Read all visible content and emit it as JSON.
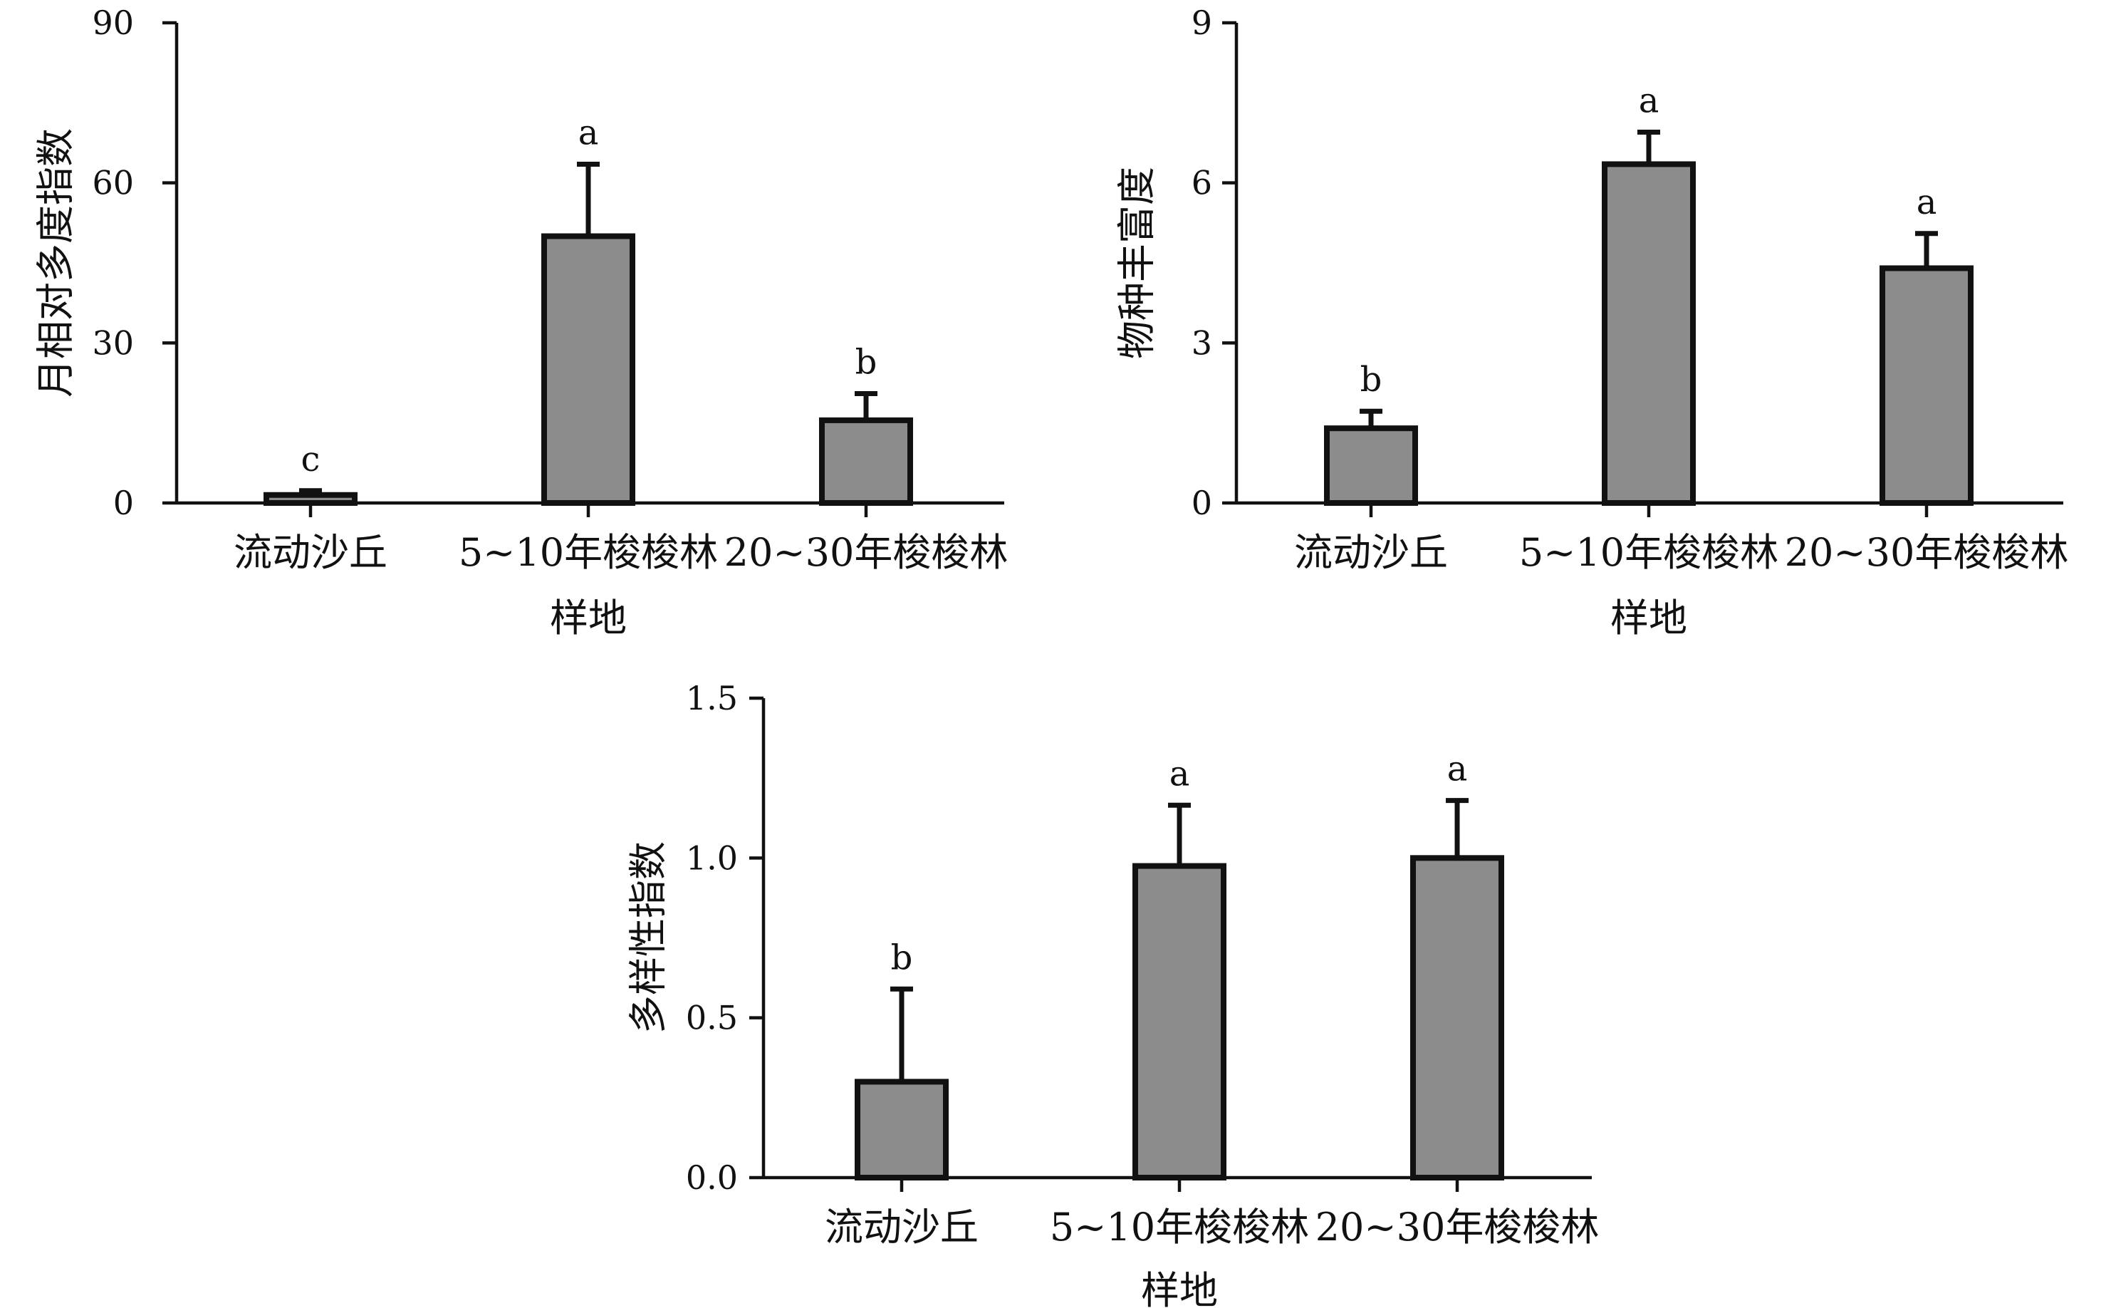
{
  "chart_data": [
    {
      "type": "bar",
      "categories": [
        "流动沙丘",
        "5~10年梭梭林",
        "20~30年梭梭林"
      ],
      "values": [
        1.5,
        50,
        15.5
      ],
      "error": [
        0.8,
        13.5,
        5
      ],
      "significance": [
        "c",
        "a",
        "b"
      ],
      "xlabel": "样地",
      "ylabel": "月相对多度指数",
      "ylim": [
        0,
        90
      ],
      "yticks": [
        0,
        30,
        60,
        90
      ],
      "ytick_labels": [
        "0",
        "30",
        "60",
        "90"
      ],
      "bar_color": "#8c8c8c",
      "grid": false
    },
    {
      "type": "bar",
      "categories": [
        "流动沙丘",
        "5~10年梭梭林",
        "20~30年梭梭林"
      ],
      "values": [
        1.4,
        6.35,
        4.4
      ],
      "error": [
        0.32,
        0.6,
        0.65
      ],
      "significance": [
        "b",
        "a",
        "a"
      ],
      "xlabel": "样地",
      "ylabel": "物种丰富度",
      "ylim": [
        0,
        9
      ],
      "yticks": [
        0,
        3,
        6,
        9
      ],
      "ytick_labels": [
        "0",
        "3",
        "6",
        "9"
      ],
      "bar_color": "#8c8c8c",
      "grid": false
    },
    {
      "type": "bar",
      "categories": [
        "流动沙丘",
        "5~10年梭梭林",
        "20~30年梭梭林"
      ],
      "values": [
        0.3,
        0.975,
        1.0
      ],
      "error": [
        0.29,
        0.19,
        0.18
      ],
      "significance": [
        "b",
        "a",
        "a"
      ],
      "xlabel": "样地",
      "ylabel": "多样性指数",
      "ylim": [
        0,
        1.5
      ],
      "yticks": [
        0,
        0.5,
        1.0,
        1.5
      ],
      "ytick_labels": [
        "0.0",
        "0.5",
        "1.0",
        "1.5"
      ],
      "bar_color": "#8c8c8c",
      "grid": false
    }
  ]
}
